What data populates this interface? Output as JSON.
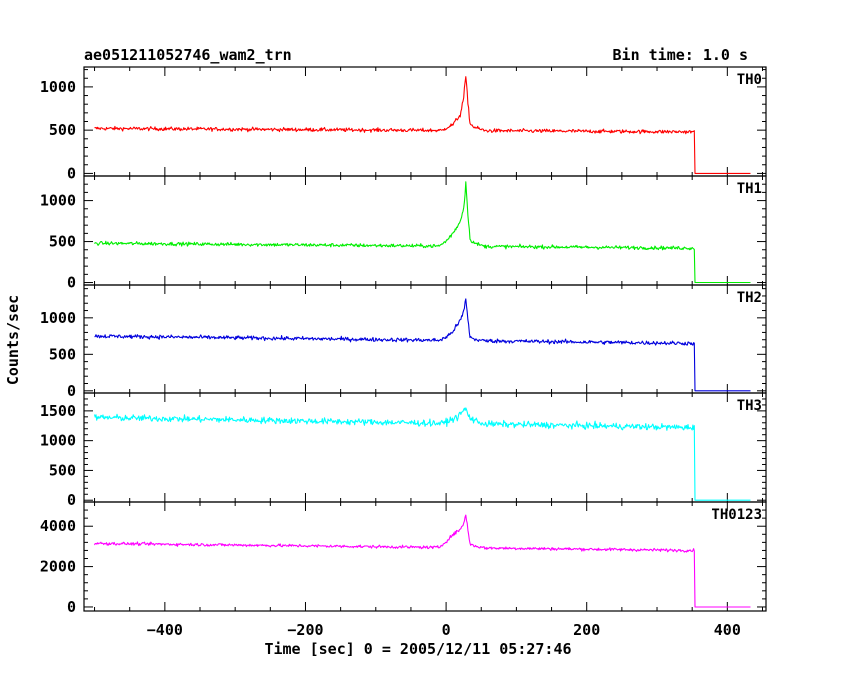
{
  "chart_data": {
    "type": "line",
    "title": "ae051211052746_wam2_trn",
    "bin_time_label": "Bin time: 1.0 s",
    "xlabel": "Time [sec] 0 = 2005/12/11 05:27:46",
    "ylabel": "Counts/sec",
    "xlim": [
      -515,
      455
    ],
    "x_ticks": [
      -400,
      -200,
      0,
      200,
      400
    ],
    "x_tick_labels": [
      "−400",
      "−200",
      "0",
      "200",
      "400"
    ],
    "grid": false,
    "panels": [
      {
        "name": "TH0",
        "color": "#ff0000",
        "ylim": [
          -30,
          1230
        ],
        "y_ticks": [
          0,
          500,
          1000
        ],
        "baseline_start": 520,
        "baseline_end": 480,
        "noise": 22,
        "burst": [
          [
            -5,
            0
          ],
          [
            0,
            30
          ],
          [
            10,
            70
          ],
          [
            20,
            180
          ],
          [
            25,
            380
          ],
          [
            28,
            630
          ],
          [
            30,
            420
          ],
          [
            34,
            80
          ],
          [
            40,
            40
          ],
          [
            55,
            0
          ]
        ]
      },
      {
        "name": "TH1",
        "color": "#00ee00",
        "ylim": [
          -30,
          1300
        ],
        "y_ticks": [
          0,
          500,
          1000
        ],
        "baseline_start": 480,
        "baseline_end": 420,
        "noise": 22,
        "burst": [
          [
            -10,
            0
          ],
          [
            0,
            60
          ],
          [
            10,
            160
          ],
          [
            20,
            300
          ],
          [
            25,
            470
          ],
          [
            28,
            770
          ],
          [
            31,
            400
          ],
          [
            34,
            90
          ],
          [
            40,
            40
          ],
          [
            55,
            0
          ]
        ]
      },
      {
        "name": "TH2",
        "color": "#0000dd",
        "ylim": [
          -30,
          1450
        ],
        "y_ticks": [
          0,
          500,
          1000
        ],
        "baseline_start": 750,
        "baseline_end": 650,
        "noise": 28,
        "burst": [
          [
            -10,
            0
          ],
          [
            0,
            40
          ],
          [
            10,
            130
          ],
          [
            20,
            270
          ],
          [
            25,
            400
          ],
          [
            28,
            560
          ],
          [
            31,
            300
          ],
          [
            34,
            50
          ],
          [
            40,
            20
          ],
          [
            55,
            0
          ]
        ]
      },
      {
        "name": "TH3",
        "color": "#00ffff",
        "ylim": [
          -30,
          1800
        ],
        "y_ticks": [
          0,
          500,
          1000,
          1500
        ],
        "baseline_start": 1390,
        "baseline_end": 1220,
        "noise": 55,
        "burst": [
          [
            -5,
            0
          ],
          [
            5,
            50
          ],
          [
            15,
            100
          ],
          [
            22,
            180
          ],
          [
            28,
            260
          ],
          [
            32,
            120
          ],
          [
            40,
            60
          ],
          [
            55,
            0
          ]
        ]
      },
      {
        "name": "TH0123",
        "color": "#ff00ff",
        "ylim": [
          -200,
          5200
        ],
        "y_ticks": [
          0,
          2000,
          4000
        ],
        "baseline_start": 3150,
        "baseline_end": 2800,
        "noise": 75,
        "burst": [
          [
            -10,
            0
          ],
          [
            0,
            300
          ],
          [
            10,
            650
          ],
          [
            20,
            900
          ],
          [
            25,
            1200
          ],
          [
            28,
            1650
          ],
          [
            31,
            900
          ],
          [
            34,
            200
          ],
          [
            40,
            100
          ],
          [
            55,
            0
          ]
        ]
      }
    ],
    "data_x_start": -500,
    "data_drop_x": 353,
    "data_x_end": 433
  }
}
